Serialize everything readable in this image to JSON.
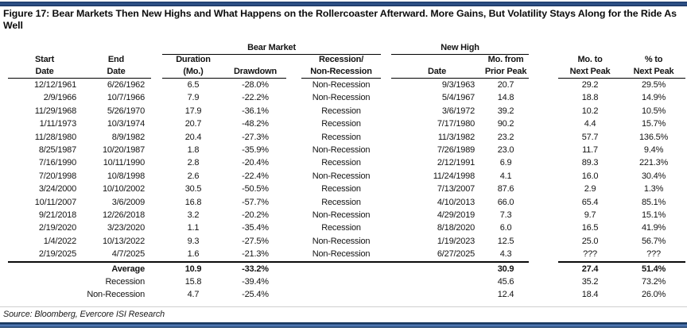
{
  "title": "Figure 17:  Bear Markets Then New Highs and What Happens on the Rollercoaster Afterward. More Gains, But Volatility Stays Along for the Ride As Well",
  "groups": {
    "bear_market": "Bear Market",
    "new_high": "New High"
  },
  "columns": {
    "start": {
      "l1": "Start",
      "l2": "Date"
    },
    "end": {
      "l1": "End",
      "l2": "Date"
    },
    "duration": {
      "l1": "Duration",
      "l2": "(Mo.)"
    },
    "drawdown": {
      "l1": "",
      "l2": "Drawdown"
    },
    "recession": {
      "l1": "Recession/",
      "l2": "Non-Recession"
    },
    "nh_date": {
      "l1": "",
      "l2": "Date"
    },
    "mo_from": {
      "l1": "Mo. from",
      "l2": "Prior Peak"
    },
    "mo_to": {
      "l1": "Mo. to",
      "l2": "Next Peak"
    },
    "pct_to": {
      "l1": "% to",
      "l2": "Next Peak"
    }
  },
  "rows": [
    [
      "12/12/1961",
      "6/26/1962",
      "6.5",
      "-28.0%",
      "Non-Recession",
      "9/3/1963",
      "20.7",
      "29.2",
      "29.5%"
    ],
    [
      "2/9/1966",
      "10/7/1966",
      "7.9",
      "-22.2%",
      "Non-Recession",
      "5/4/1967",
      "14.8",
      "18.8",
      "14.9%"
    ],
    [
      "11/29/1968",
      "5/26/1970",
      "17.9",
      "-36.1%",
      "Recession",
      "3/6/1972",
      "39.2",
      "10.2",
      "10.5%"
    ],
    [
      "1/11/1973",
      "10/3/1974",
      "20.7",
      "-48.2%",
      "Recession",
      "7/17/1980",
      "90.2",
      "4.4",
      "15.7%"
    ],
    [
      "11/28/1980",
      "8/9/1982",
      "20.4",
      "-27.3%",
      "Recession",
      "11/3/1982",
      "23.2",
      "57.7",
      "136.5%"
    ],
    [
      "8/25/1987",
      "10/20/1987",
      "1.8",
      "-35.9%",
      "Non-Recession",
      "7/26/1989",
      "23.0",
      "11.7",
      "9.4%"
    ],
    [
      "7/16/1990",
      "10/11/1990",
      "2.8",
      "-20.4%",
      "Recession",
      "2/12/1991",
      "6.9",
      "89.3",
      "221.3%"
    ],
    [
      "7/20/1998",
      "10/8/1998",
      "2.6",
      "-22.4%",
      "Non-Recession",
      "11/24/1998",
      "4.1",
      "16.0",
      "30.4%"
    ],
    [
      "3/24/2000",
      "10/10/2002",
      "30.5",
      "-50.5%",
      "Recession",
      "7/13/2007",
      "87.6",
      "2.9",
      "1.3%"
    ],
    [
      "10/11/2007",
      "3/6/2009",
      "16.8",
      "-57.7%",
      "Recession",
      "4/10/2013",
      "66.0",
      "65.4",
      "85.1%"
    ],
    [
      "9/21/2018",
      "12/26/2018",
      "3.2",
      "-20.2%",
      "Non-Recession",
      "4/29/2019",
      "7.3",
      "9.7",
      "15.1%"
    ],
    [
      "2/19/2020",
      "3/23/2020",
      "1.1",
      "-35.4%",
      "Recession",
      "8/18/2020",
      "6.0",
      "16.5",
      "41.9%"
    ],
    [
      "1/4/2022",
      "10/13/2022",
      "9.3",
      "-27.5%",
      "Non-Recession",
      "1/19/2023",
      "12.5",
      "25.0",
      "56.7%"
    ],
    [
      "2/19/2025",
      "4/7/2025",
      "1.6",
      "-21.3%",
      "Non-Recession",
      "6/27/2025",
      "4.3",
      "???",
      "???"
    ]
  ],
  "summary": [
    {
      "label": "Average",
      "bold": true,
      "duration": "10.9",
      "drawdown": "-33.2%",
      "mo_from": "30.9",
      "mo_to": "27.4",
      "pct_to": "51.4%"
    },
    {
      "label": "Recession",
      "bold": false,
      "duration": "15.8",
      "drawdown": "-39.4%",
      "mo_from": "45.6",
      "mo_to": "35.2",
      "pct_to": "73.2%"
    },
    {
      "label": "Non-Recession",
      "bold": false,
      "duration": "4.7",
      "drawdown": "-25.4%",
      "mo_from": "12.4",
      "mo_to": "18.4",
      "pct_to": "26.0%"
    }
  ],
  "source": "Source: Bloomberg, Evercore ISI Research",
  "colors": {
    "accent_bar_dark": "#17365d",
    "accent_bar_light": "#5b84c4",
    "rule_gray": "#cfcfcf",
    "text": "#141414"
  }
}
